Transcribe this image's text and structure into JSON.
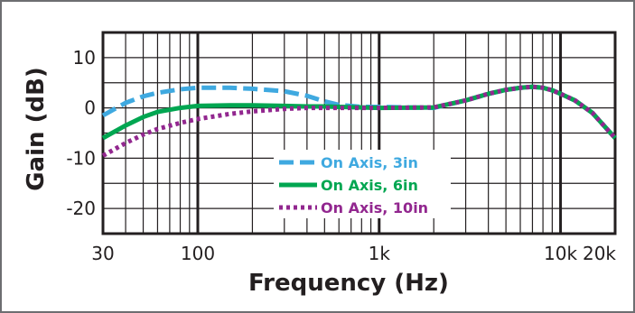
{
  "chart_data": {
    "type": "line",
    "title": "",
    "xlabel": "Frequency (Hz)",
    "ylabel": "Gain (dB)",
    "x_scale": "log",
    "xlim": [
      30,
      20000
    ],
    "ylim": [
      -25,
      15
    ],
    "grid": true,
    "legend_position": "bottom-center",
    "x_ticks": [
      {
        "value": 30,
        "label": "30"
      },
      {
        "value": 100,
        "label": "100"
      },
      {
        "value": 1000,
        "label": "1k"
      },
      {
        "value": 10000,
        "label": "10k"
      },
      {
        "value": 20000,
        "label": "20k"
      }
    ],
    "y_ticks": [
      {
        "value": 10,
        "label": "10"
      },
      {
        "value": 0,
        "label": "0"
      },
      {
        "value": -10,
        "label": "-10"
      },
      {
        "value": -20,
        "label": "-20"
      }
    ],
    "series": [
      {
        "name": "On Axis, 3in",
        "color": "#3fa9e0",
        "dash": "dashed",
        "x": [
          30,
          40,
          50,
          60,
          80,
          100,
          150,
          200,
          300,
          400,
          500,
          600,
          800,
          1000,
          2000,
          3000,
          4000,
          5000,
          6000,
          7000,
          8000,
          9000,
          10000,
          12000,
          15000,
          20000
        ],
        "y": [
          -1.5,
          1.0,
          2.3,
          3.0,
          3.7,
          4.0,
          4.0,
          3.8,
          3.3,
          2.4,
          1.3,
          0.6,
          0.2,
          0.2,
          0.0,
          1.5,
          2.8,
          3.6,
          4.0,
          4.2,
          4.0,
          3.5,
          2.8,
          1.5,
          -1.0,
          -6.0
        ]
      },
      {
        "name": "On Axis, 6in",
        "color": "#00a651",
        "dash": "solid",
        "x": [
          30,
          40,
          50,
          60,
          80,
          100,
          150,
          200,
          300,
          400,
          500,
          600,
          800,
          1000,
          2000,
          3000,
          4000,
          5000,
          6000,
          7000,
          8000,
          9000,
          10000,
          12000,
          15000,
          20000
        ],
        "y": [
          -6.0,
          -3.5,
          -1.8,
          -0.8,
          0.0,
          0.4,
          0.5,
          0.5,
          0.4,
          0.3,
          0.3,
          0.2,
          0.1,
          0.0,
          0.1,
          1.5,
          2.8,
          3.6,
          4.0,
          4.2,
          4.0,
          3.5,
          2.8,
          1.5,
          -1.0,
          -6.0
        ]
      },
      {
        "name": "On Axis, 10in",
        "color": "#92278f",
        "dash": "dotted",
        "x": [
          30,
          40,
          50,
          60,
          80,
          100,
          150,
          200,
          300,
          400,
          500,
          600,
          800,
          1000,
          2000,
          3000,
          4000,
          5000,
          6000,
          7000,
          8000,
          9000,
          10000,
          12000,
          15000,
          20000
        ],
        "y": [
          -9.5,
          -7.0,
          -5.3,
          -4.2,
          -3.0,
          -2.2,
          -1.2,
          -0.7,
          -0.2,
          0.0,
          0.0,
          0.0,
          0.0,
          0.0,
          0.1,
          1.5,
          2.8,
          3.6,
          4.0,
          4.2,
          4.0,
          3.5,
          2.8,
          1.5,
          -1.0,
          -6.0
        ]
      }
    ]
  }
}
